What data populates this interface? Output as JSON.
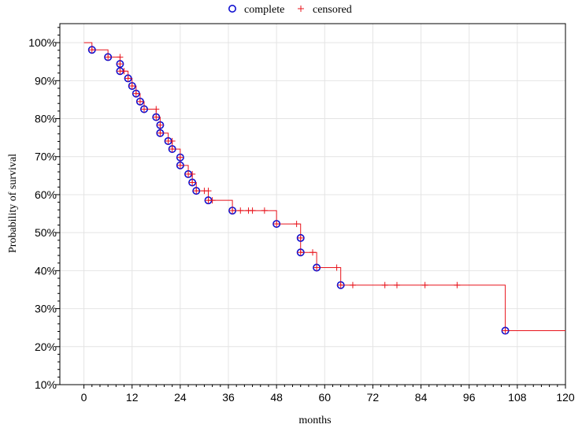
{
  "chart_data": {
    "type": "line",
    "xlabel": "months",
    "ylabel": "Probability of survival",
    "xlim": [
      -6,
      120
    ],
    "ylim": [
      10,
      105
    ],
    "x_ticks": [
      0,
      12,
      24,
      36,
      48,
      60,
      72,
      84,
      96,
      108,
      120
    ],
    "y_ticks": [
      10,
      20,
      30,
      40,
      50,
      60,
      70,
      80,
      90,
      100
    ],
    "y_tick_labels": [
      "10%",
      "20%",
      "30%",
      "40%",
      "50%",
      "60%",
      "70%",
      "80%",
      "90%",
      "100%"
    ],
    "grid": true,
    "legend_position": "top-center",
    "legend": {
      "complete_label": "complete",
      "censored_label": "censored"
    },
    "colors": {
      "curve": "#e8141c",
      "complete": "#1010d0",
      "censored": "#e8141c",
      "grid": "#e4e4e4"
    },
    "survival_steps": [
      [
        0,
        100
      ],
      [
        2,
        98.1
      ],
      [
        6,
        96.2
      ],
      [
        9,
        94.4
      ],
      [
        9,
        92.5
      ],
      [
        11,
        90.6
      ],
      [
        12,
        88.6
      ],
      [
        13,
        86.6
      ],
      [
        14,
        84.5
      ],
      [
        15,
        82.5
      ],
      [
        18,
        80.4
      ],
      [
        19,
        78.3
      ],
      [
        19,
        76.2
      ],
      [
        21,
        74.1
      ],
      [
        22,
        72.0
      ],
      [
        24,
        69.8
      ],
      [
        24,
        67.7
      ],
      [
        26,
        65.4
      ],
      [
        27,
        63.2
      ],
      [
        28,
        61.0
      ],
      [
        31,
        58.5
      ],
      [
        37,
        55.8
      ],
      [
        48,
        52.3
      ],
      [
        54,
        48.6
      ],
      [
        54,
        44.8
      ],
      [
        58,
        40.8
      ],
      [
        64,
        36.2
      ],
      [
        105,
        24.2
      ],
      [
        120,
        24.2
      ]
    ],
    "complete": [
      [
        2,
        98.1
      ],
      [
        6,
        96.2
      ],
      [
        9,
        94.4
      ],
      [
        9,
        92.5
      ],
      [
        11,
        90.6
      ],
      [
        12,
        88.6
      ],
      [
        13,
        86.6
      ],
      [
        14,
        84.5
      ],
      [
        15,
        82.5
      ],
      [
        18,
        80.4
      ],
      [
        19,
        78.3
      ],
      [
        19,
        76.2
      ],
      [
        21,
        74.1
      ],
      [
        22,
        72.0
      ],
      [
        24,
        69.8
      ],
      [
        24,
        67.7
      ],
      [
        26,
        65.4
      ],
      [
        27,
        63.2
      ],
      [
        28,
        61.0
      ],
      [
        31,
        58.5
      ],
      [
        37,
        55.8
      ],
      [
        48,
        52.3
      ],
      [
        54,
        48.6
      ],
      [
        54,
        44.8
      ],
      [
        58,
        40.8
      ],
      [
        64,
        36.2
      ],
      [
        105,
        24.2
      ]
    ],
    "censored": [
      [
        2,
        98.1
      ],
      [
        6,
        96.2
      ],
      [
        9,
        96.2
      ],
      [
        9,
        94.4
      ],
      [
        9,
        92.5
      ],
      [
        10,
        92.5
      ],
      [
        11,
        90.6
      ],
      [
        12,
        88.6
      ],
      [
        13,
        86.6
      ],
      [
        14,
        84.5
      ],
      [
        15,
        82.5
      ],
      [
        18,
        82.5
      ],
      [
        18,
        80.4
      ],
      [
        19,
        78.3
      ],
      [
        19,
        76.2
      ],
      [
        21,
        74.1
      ],
      [
        22,
        74.1
      ],
      [
        22,
        72.0
      ],
      [
        24,
        69.8
      ],
      [
        24,
        67.7
      ],
      [
        26,
        65.4
      ],
      [
        27,
        65.4
      ],
      [
        27,
        63.2
      ],
      [
        28,
        61.0
      ],
      [
        30,
        61.0
      ],
      [
        31,
        61.0
      ],
      [
        31,
        58.5
      ],
      [
        32,
        58.5
      ],
      [
        37,
        55.8
      ],
      [
        39,
        55.8
      ],
      [
        41,
        55.8
      ],
      [
        42,
        55.8
      ],
      [
        45,
        55.8
      ],
      [
        48,
        52.3
      ],
      [
        53,
        52.3
      ],
      [
        54,
        48.6
      ],
      [
        54,
        44.8
      ],
      [
        57,
        44.8
      ],
      [
        58,
        40.8
      ],
      [
        63,
        40.8
      ],
      [
        64,
        36.2
      ],
      [
        67,
        36.2
      ],
      [
        75,
        36.2
      ],
      [
        78,
        36.2
      ],
      [
        85,
        36.2
      ],
      [
        93,
        36.2
      ],
      [
        105,
        24.2
      ]
    ]
  }
}
